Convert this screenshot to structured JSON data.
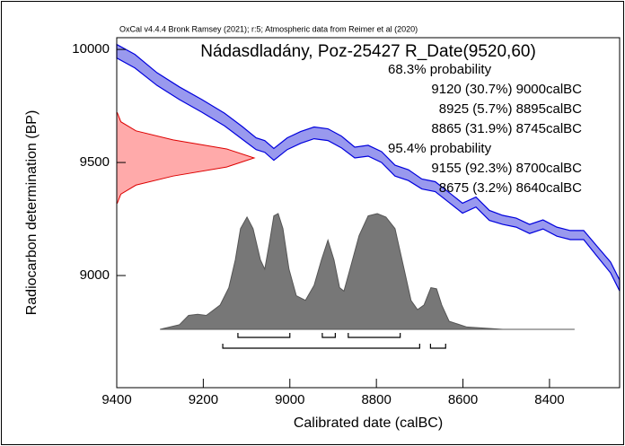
{
  "chart_data": {
    "type": "calibration",
    "header": "OxCal v4.4.4 Bronk Ramsey (2021); r:5; Atmospheric data from Reimer et al (2020)",
    "title": "Nádasdladány, Poz-25427 R_Date(9520,60)",
    "x_label": "Calibrated date (calBC)",
    "y_label": "Radiocarbon determination (BP)",
    "xlim": [
      9400,
      8238
    ],
    "ylim": [
      8504,
      10052
    ],
    "xticks": [
      9400,
      9200,
      9000,
      8800,
      8600,
      8400
    ],
    "yticks": [
      9000,
      9500,
      10000
    ],
    "calibration_curve": {
      "color": "#0000dd",
      "fill": "#9999ee",
      "x": [
        9400,
        9358,
        9307,
        9255,
        9203,
        9151,
        9110,
        9078,
        9058,
        9037,
        9006,
        8975,
        8944,
        8912,
        8881,
        8850,
        8819,
        8788,
        8757,
        8726,
        8695,
        8664,
        8632,
        8601,
        8570,
        8539,
        8508,
        8477,
        8446,
        8415,
        8383,
        8352,
        8321,
        8290,
        8259,
        8238
      ],
      "values": [
        9992,
        9948,
        9869,
        9806,
        9750,
        9690,
        9631,
        9583,
        9571,
        9536,
        9583,
        9611,
        9631,
        9623,
        9591,
        9544,
        9552,
        9524,
        9464,
        9444,
        9405,
        9393,
        9345,
        9298,
        9325,
        9266,
        9246,
        9234,
        9206,
        9226,
        9194,
        9179,
        9179,
        9107,
        9036,
        8956
      ],
      "errors": [
        30,
        30,
        28,
        28,
        28,
        28,
        28,
        26,
        26,
        26,
        26,
        26,
        26,
        26,
        26,
        24,
        24,
        24,
        24,
        24,
        22,
        22,
        22,
        22,
        22,
        22,
        20,
        20,
        20,
        20,
        20,
        20,
        20,
        22,
        24,
        24
      ]
    },
    "measurement": {
      "color": "#dd0000",
      "fill": "#ffaaaa",
      "y": [
        9720,
        9680,
        9640,
        9600,
        9560,
        9520,
        9480,
        9440,
        9400,
        9360,
        9320
      ],
      "density": [
        0.004,
        0.03,
        0.14,
        0.41,
        0.8,
        1.0,
        0.8,
        0.41,
        0.14,
        0.03,
        0.004
      ]
    },
    "posterior": {
      "color": "#555555",
      "fill": "#777777",
      "x": [
        9300,
        9255,
        9234,
        9213,
        9193,
        9161,
        9141,
        9126,
        9114,
        9099,
        9085,
        9068,
        9058,
        9047,
        9037,
        9027,
        9016,
        9002,
        8985,
        8964,
        8944,
        8927,
        8912,
        8898,
        8885,
        8875,
        8861,
        8840,
        8819,
        8798,
        8778,
        8757,
        8736,
        8720,
        8705,
        8690,
        8674,
        8661,
        8649,
        8632,
        8591,
        8508,
        8342
      ],
      "density": [
        0,
        0.04,
        0.12,
        0.13,
        0.12,
        0.21,
        0.36,
        0.6,
        0.87,
        0.97,
        0.87,
        0.6,
        0.52,
        0.75,
        0.98,
        1.0,
        0.87,
        0.52,
        0.29,
        0.25,
        0.38,
        0.6,
        0.77,
        0.6,
        0.36,
        0.33,
        0.52,
        0.81,
        0.98,
        1.0,
        0.97,
        0.87,
        0.52,
        0.25,
        0.17,
        0.21,
        0.36,
        0.35,
        0.21,
        0.07,
        0.02,
        0,
        0
      ]
    },
    "probability_groups": [
      {
        "label": "68.3% probability",
        "ranges": [
          {
            "from": 9120,
            "to": 9000,
            "label": "9120 (30.7%) 9000calBC"
          },
          {
            "from": 8925,
            "to": 8895,
            "label": "8925 (5.7%) 8895calBC"
          },
          {
            "from": 8865,
            "to": 8745,
            "label": "8865 (31.9%) 8745calBC"
          }
        ]
      },
      {
        "label": "95.4% probability",
        "ranges": [
          {
            "from": 9155,
            "to": 8700,
            "label": "9155 (92.3%) 8700calBC"
          },
          {
            "from": 8675,
            "to": 8640,
            "label": "8675 (3.2%) 8640calBC"
          }
        ]
      }
    ]
  }
}
